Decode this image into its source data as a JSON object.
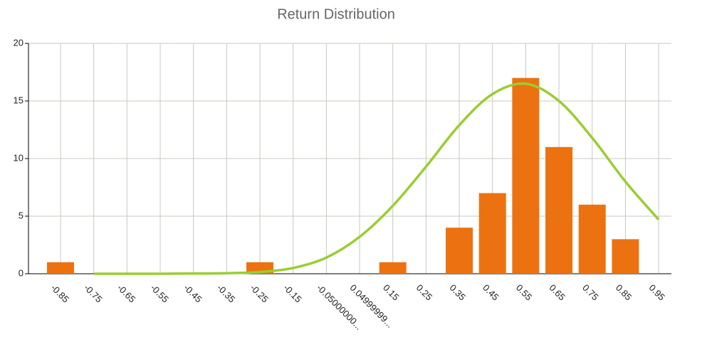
{
  "chart_data": {
    "type": "bar",
    "title": "Return Distribution",
    "categories": [
      "-0.85",
      "-0.75",
      "-0.65",
      "-0.55",
      "-0.45",
      "-0.35",
      "-0.25",
      "-0.15",
      "-0.05000000...",
      "0.04999999...",
      "0.15",
      "0.25",
      "0.35",
      "0.45",
      "0.55",
      "0.65",
      "0.75",
      "0.85",
      "0.95"
    ],
    "series": [
      {
        "type": "bar",
        "color": "#ec7211",
        "values": [
          1,
          0,
          0,
          0,
          0,
          0,
          1,
          0,
          0,
          0,
          1,
          0,
          4,
          7,
          17,
          11,
          6,
          3,
          0
        ]
      },
      {
        "type": "line",
        "color": "#9acd32",
        "values": [
          null,
          0,
          0,
          0,
          0.02,
          0.05,
          0.15,
          0.5,
          1.4,
          3.2,
          5.9,
          9.3,
          12.9,
          15.6,
          16.5,
          15.0,
          11.8,
          8.0,
          4.7
        ]
      }
    ],
    "ylim": [
      0,
      20
    ],
    "yticks": [
      0,
      5,
      10,
      15,
      20
    ],
    "grid": true
  }
}
